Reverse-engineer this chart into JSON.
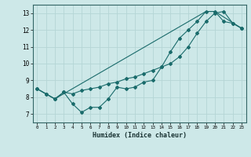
{
  "title": "",
  "xlabel": "Humidex (Indice chaleur)",
  "ylabel": "",
  "xlim": [
    -0.5,
    23.5
  ],
  "ylim": [
    6.5,
    13.5
  ],
  "xticks": [
    0,
    1,
    2,
    3,
    4,
    5,
    6,
    7,
    8,
    9,
    10,
    11,
    12,
    13,
    14,
    15,
    16,
    17,
    18,
    19,
    20,
    21,
    22,
    23
  ],
  "yticks": [
    7,
    8,
    9,
    10,
    11,
    12,
    13
  ],
  "background_color": "#cde8e8",
  "grid_color": "#b5d5d5",
  "line_color": "#1a6b6b",
  "line1_x": [
    0,
    1,
    2,
    3,
    4,
    5,
    6,
    7,
    8,
    9,
    10,
    11,
    12,
    13,
    14,
    15,
    16,
    17,
    18,
    19,
    20,
    21,
    22,
    23
  ],
  "line1_y": [
    8.5,
    8.2,
    7.9,
    8.3,
    7.6,
    7.1,
    7.4,
    7.4,
    7.9,
    8.6,
    8.5,
    8.6,
    8.9,
    9.0,
    9.8,
    10.7,
    11.5,
    12.0,
    12.5,
    13.1,
    13.1,
    12.5,
    12.4,
    12.1
  ],
  "line2_x": [
    0,
    1,
    2,
    3,
    4,
    5,
    6,
    7,
    8,
    9,
    10,
    11,
    12,
    13,
    14,
    15,
    16,
    17,
    18,
    19,
    20,
    21,
    22,
    23
  ],
  "line2_y": [
    8.5,
    8.2,
    7.9,
    8.3,
    8.2,
    8.4,
    8.5,
    8.6,
    8.8,
    8.9,
    9.1,
    9.2,
    9.4,
    9.6,
    9.8,
    10.0,
    10.4,
    11.0,
    11.8,
    12.5,
    13.0,
    13.1,
    12.4,
    12.1
  ],
  "line3_x": [
    0,
    2,
    19,
    20,
    23
  ],
  "line3_y": [
    8.5,
    7.9,
    13.1,
    13.1,
    12.1
  ]
}
